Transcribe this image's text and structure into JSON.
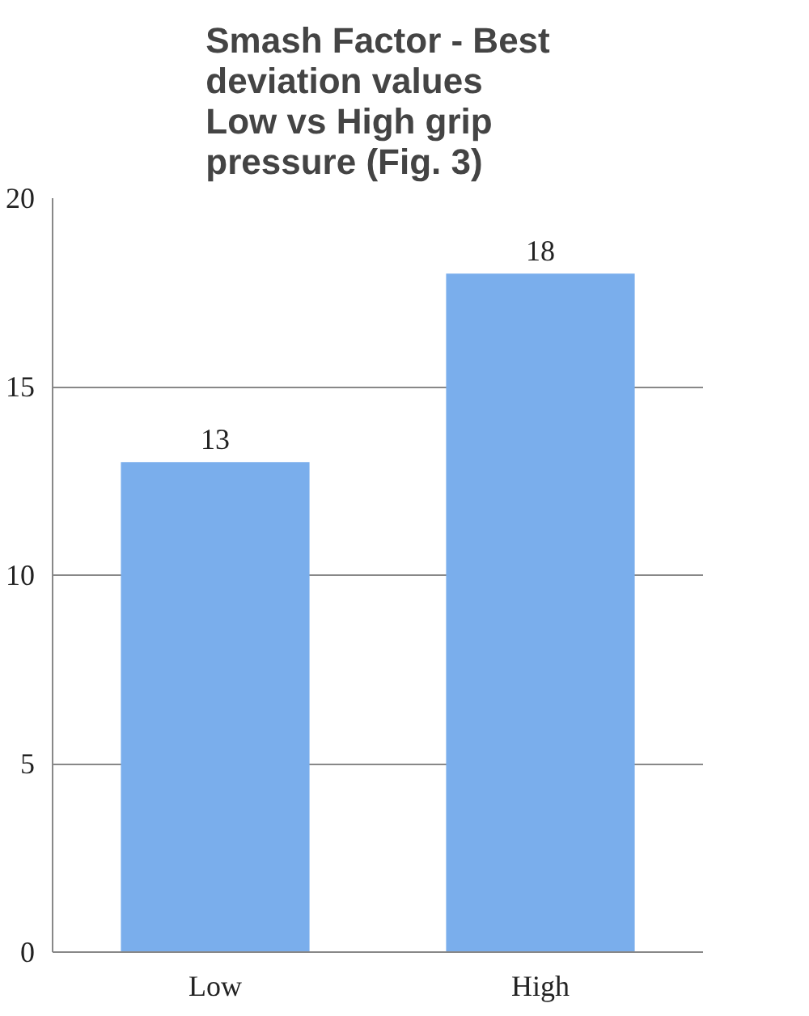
{
  "chart_data": {
    "type": "bar",
    "title": "Smash Factor - Best\ndeviation values\nLow vs High grip\npressure (Fig. 3)",
    "categories": [
      "Low",
      "High"
    ],
    "values": [
      13,
      18
    ],
    "color": "#7aaeec",
    "ylim": [
      0,
      20
    ],
    "yticks": [
      0,
      5,
      10,
      15,
      20
    ],
    "grid": "y",
    "data_labels": true
  }
}
